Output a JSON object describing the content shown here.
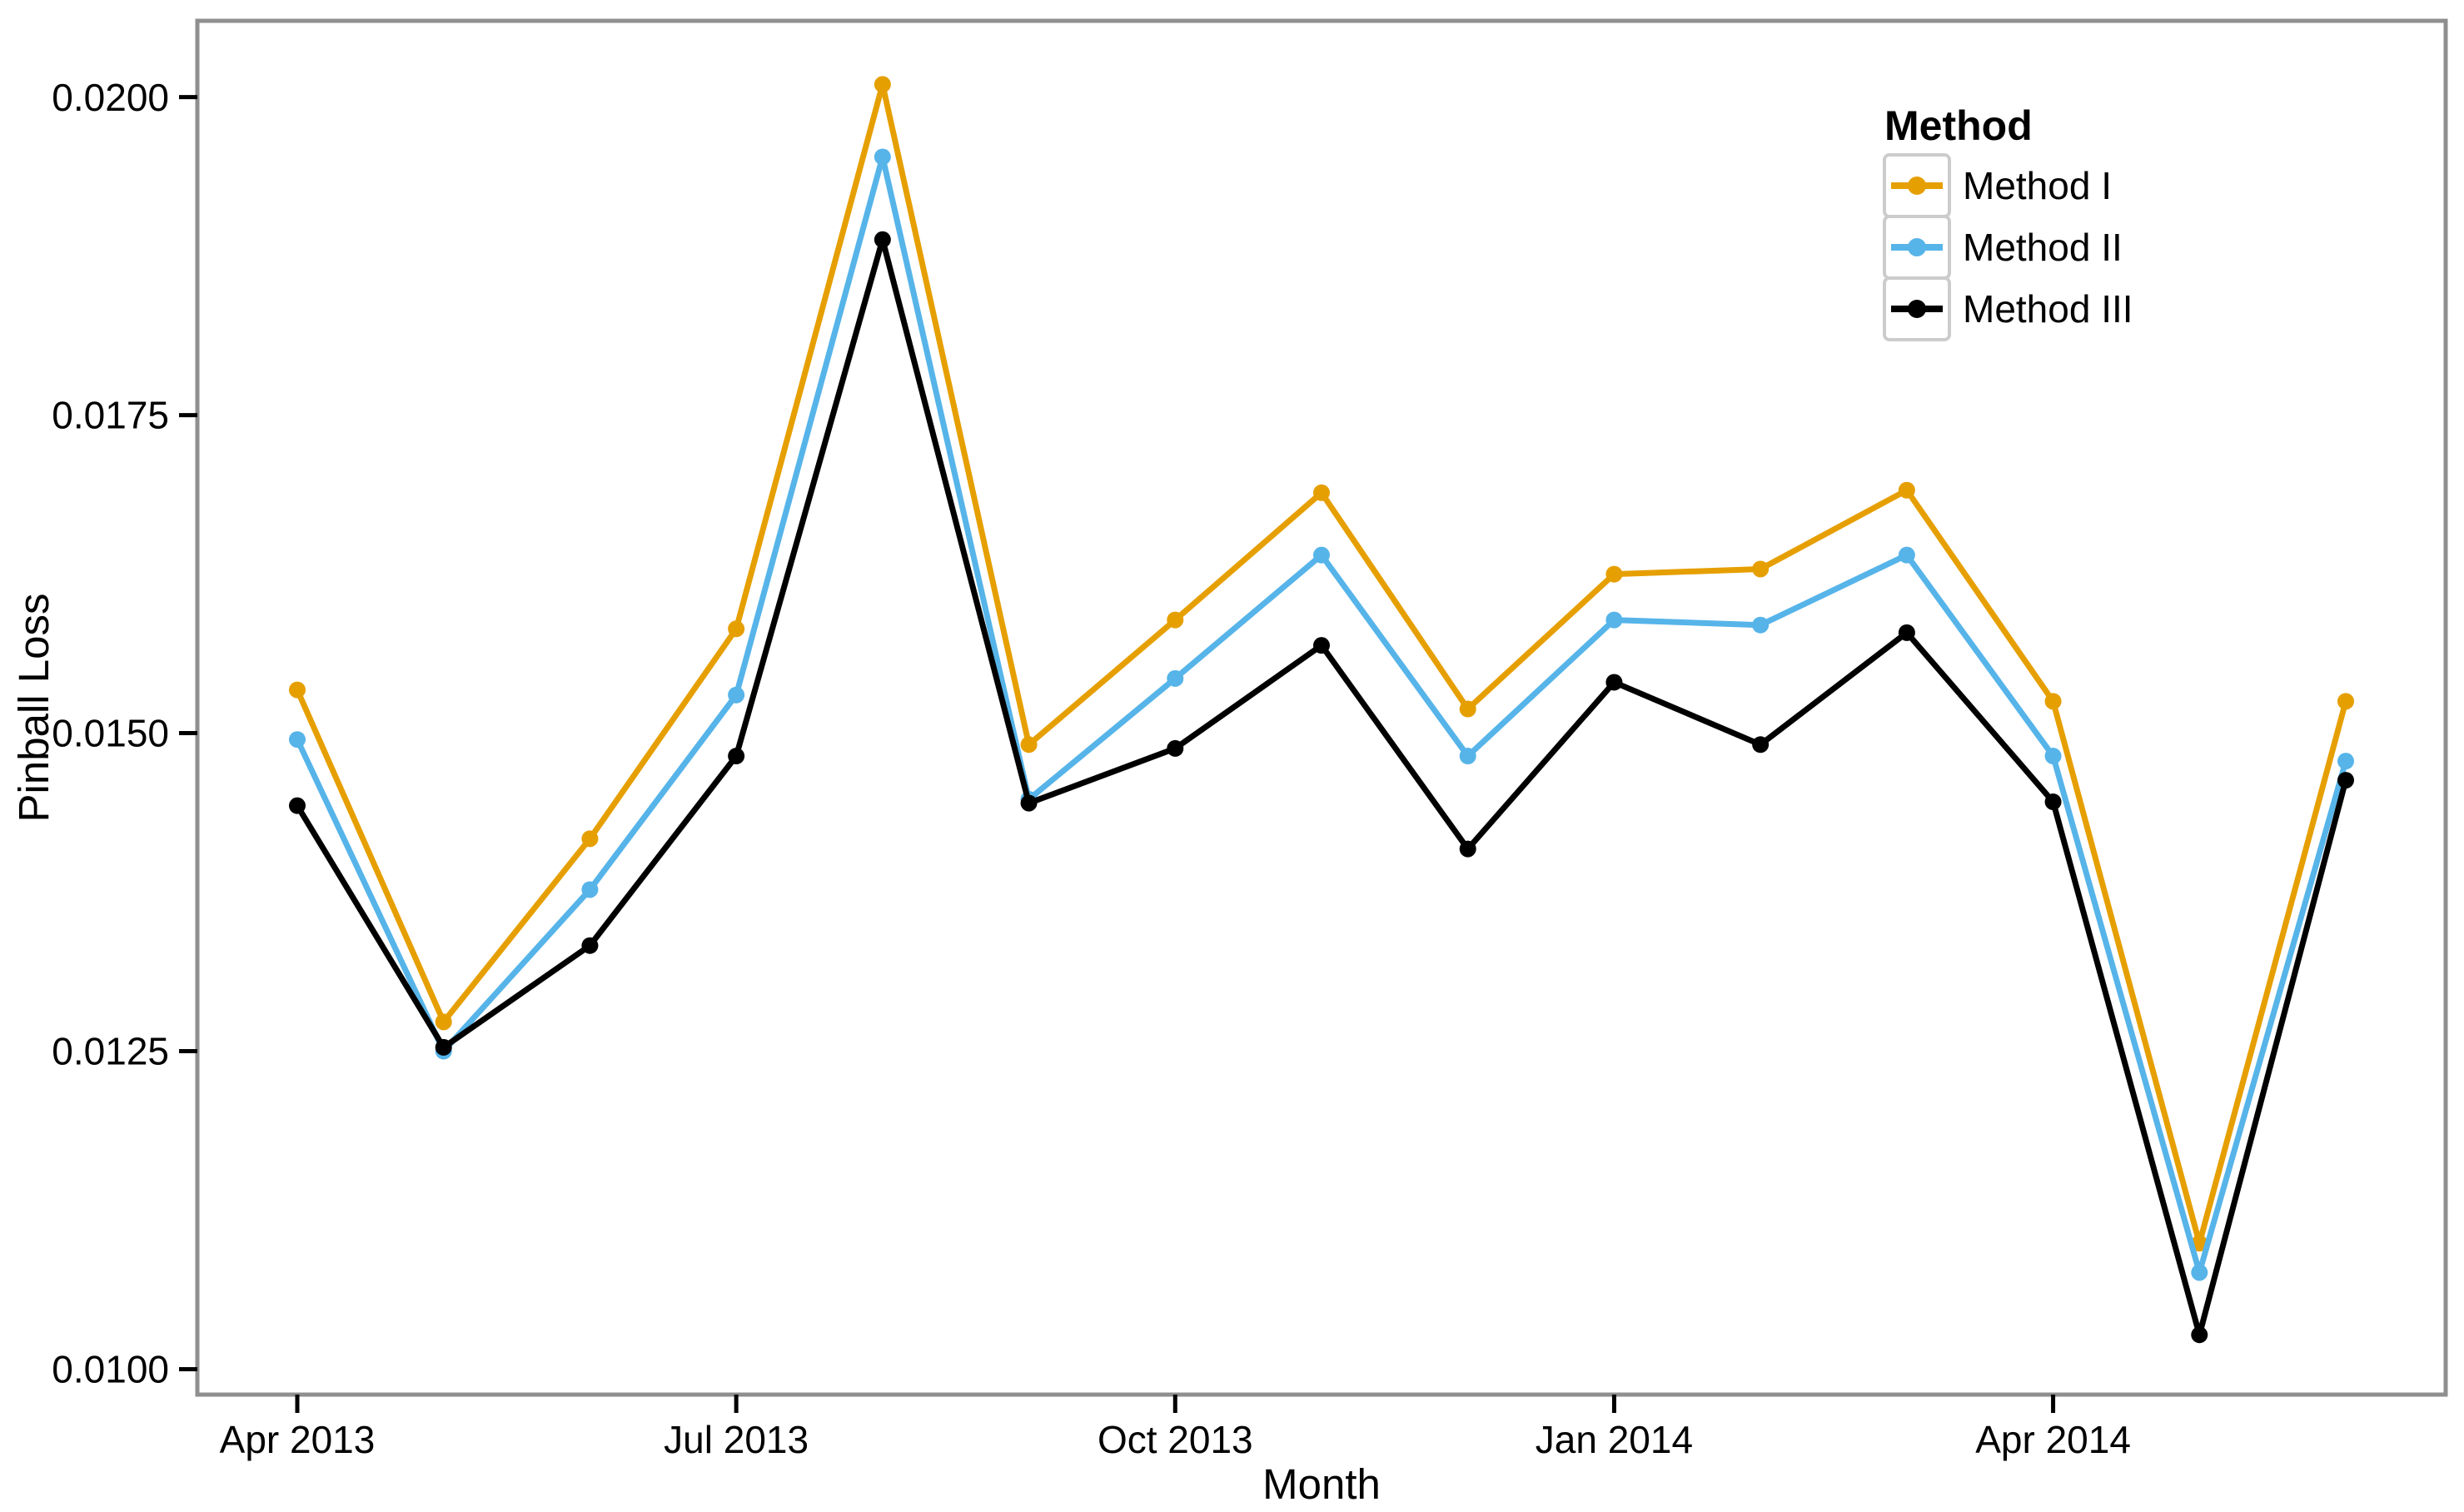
{
  "figure": {
    "background_color": "#FFFFFF",
    "panel_border_color": "#8F8F8F",
    "legend_key_border_color": "#CCCCCC",
    "tick_mark_color": "#000000",
    "text_color": "#000000"
  },
  "chart_data": {
    "type": "line",
    "title": "",
    "xlabel": "Month",
    "ylabel": "Pinball Loss",
    "x": [
      "Apr 2013",
      "May 2013",
      "Jun 2013",
      "Jul 2013",
      "Aug 2013",
      "Sep 2013",
      "Oct 2013",
      "Nov 2013",
      "Dec 2013",
      "Jan 2014",
      "Feb 2014",
      "Mar 2014",
      "Apr 2014",
      "May 2014",
      "Jun 2014"
    ],
    "x_tick_labels": [
      "Apr 2013",
      "Jul 2013",
      "Oct 2013",
      "Jan 2014",
      "Apr 2014"
    ],
    "x_tick_indices": [
      0,
      3,
      6,
      9,
      12
    ],
    "y_ticks": [
      0.01,
      0.0125,
      0.015,
      0.0175,
      0.02
    ],
    "y_tick_labels": [
      "0.0100",
      "0.0125",
      "0.0150",
      "0.0175",
      "0.0200"
    ],
    "ylim": [
      0.0098,
      0.0206
    ],
    "grid": false,
    "legend": {
      "title": "Method",
      "position": "top-right-inside"
    },
    "series": [
      {
        "name": "Method I",
        "color": "#E69F00",
        "values": [
          0.01534,
          0.01273,
          0.01417,
          0.01582,
          0.0201,
          0.01491,
          0.01589,
          0.01689,
          0.01519,
          0.01625,
          0.01629,
          0.01691,
          0.01525,
          0.01099,
          0.01525
        ]
      },
      {
        "name": "Method II",
        "color": "#56B4E9",
        "values": [
          0.01495,
          0.0125,
          0.01377,
          0.0153,
          0.01953,
          0.01448,
          0.01543,
          0.0164,
          0.01482,
          0.01589,
          0.01585,
          0.0164,
          0.01482,
          0.01076,
          0.01478
        ]
      },
      {
        "name": "Method III",
        "color": "#000000",
        "values": [
          0.01443,
          0.01253,
          0.01333,
          0.01482,
          0.01888,
          0.01445,
          0.01488,
          0.01569,
          0.01409,
          0.0154,
          0.01491,
          0.01579,
          0.01446,
          0.01027,
          0.01463
        ]
      }
    ]
  }
}
